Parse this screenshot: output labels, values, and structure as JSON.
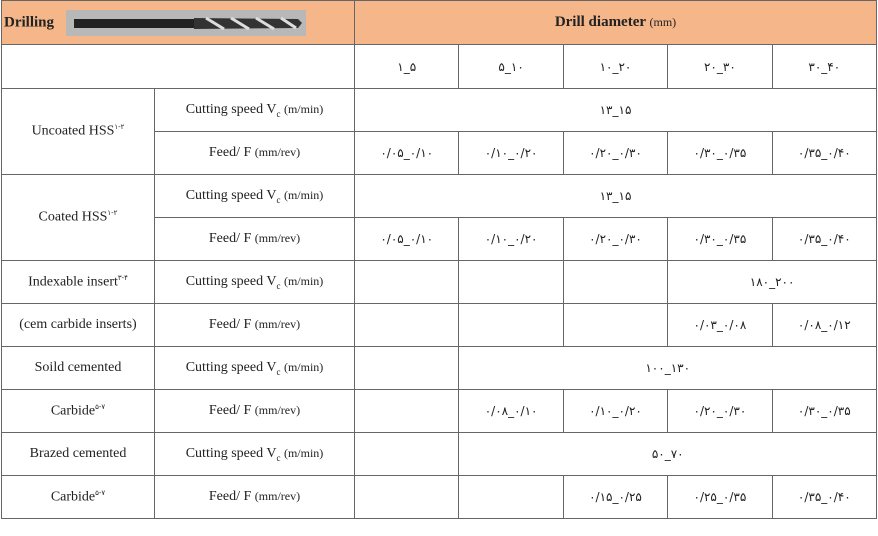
{
  "header": {
    "title": "Drilling",
    "diameter_title": "Drill diameter",
    "diameter_unit": "(mm)"
  },
  "diameters": [
    "۱_۵",
    "۵_۱۰",
    "۱۰_۲۰",
    "۲۰_۳۰",
    "۳۰_۴۰"
  ],
  "parameters": {
    "speed": {
      "text": "Cutting speed V",
      "sub": "c",
      "unit": "(m/min)"
    },
    "feed": {
      "text": "Feed/ F",
      "unit": "(mm/rev)"
    }
  },
  "materials": [
    {
      "lines": [
        {
          "text": "Uncoated HSS",
          "sup": "۱-۲"
        }
      ],
      "speed": [
        "۱۳_۱۵"
      ],
      "feed": [
        "۰/۰۵_۰/۱۰",
        "۰/۱۰_۰/۲۰",
        "۰/۲۰_۰/۳۰",
        "۰/۳۰_۰/۳۵",
        "۰/۳۵_۰/۴۰"
      ]
    },
    {
      "lines": [
        {
          "text": "Coated HSS",
          "sup": "۱-۲"
        }
      ],
      "speed": [
        "۱۳_۱۵"
      ],
      "feed": [
        "۰/۰۵_۰/۱۰",
        "۰/۱۰_۰/۲۰",
        "۰/۲۰_۰/۳۰",
        "۰/۳۰_۰/۳۵",
        "۰/۳۵_۰/۴۰"
      ]
    },
    {
      "lines": [
        {
          "text": "Indexable insert",
          "sup": "۳-۴"
        },
        {
          "text": "(cem carbide inserts)"
        }
      ],
      "speed": [
        null,
        null,
        null,
        "۱۸۰_۲۰۰"
      ],
      "feed": [
        null,
        null,
        null,
        "۰/۰۳_۰/۰۸",
        "۰/۰۸_۰/۱۲"
      ]
    },
    {
      "lines": [
        {
          "text": "Soild cemented"
        },
        {
          "text": "Carbide",
          "sup": "۵-۷"
        }
      ],
      "speed": [
        null,
        "۱۰۰_۱۳۰"
      ],
      "feed": [
        null,
        "۰/۰۸_۰/۱۰",
        "۰/۱۰_۰/۲۰",
        "۰/۲۰_۰/۳۰",
        "۰/۳۰_۰/۳۵"
      ]
    },
    {
      "lines": [
        {
          "text": "Brazed cemented"
        },
        {
          "text": "Carbide",
          "sup": "۵-۷"
        }
      ],
      "speed": [
        null,
        "۵۰_۷۰"
      ],
      "feed": [
        null,
        null,
        "۰/۱۵_۰/۲۵",
        "۰/۲۵_۰/۳۵",
        "۰/۳۵_۰/۴۰"
      ]
    }
  ]
}
